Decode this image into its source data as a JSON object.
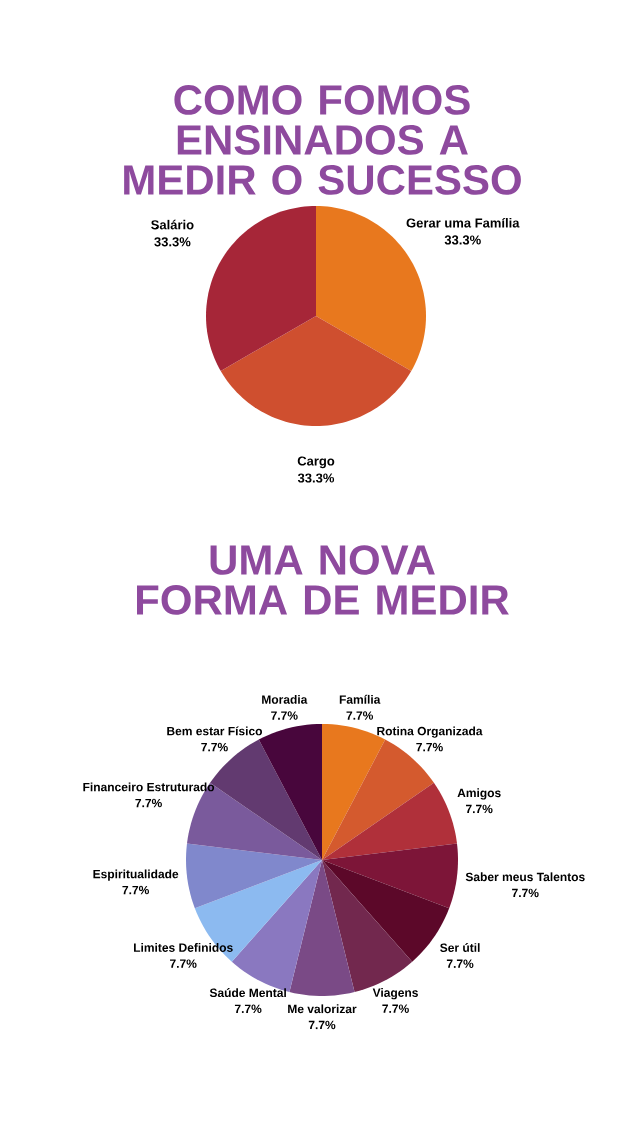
{
  "chart_data": [
    {
      "type": "pie",
      "title": "COMO FOMOS ENSINADOS A MEDIR O SUCESSO",
      "categories": [
        "Gerar uma Família",
        "Cargo",
        "Salário"
      ],
      "values": [
        33.3,
        33.3,
        33.3
      ],
      "value_labels": [
        "33.3%",
        "33.3%",
        "33.3%"
      ],
      "colors": [
        "#e8781e",
        "#cf4f2f",
        "#a62638"
      ]
    },
    {
      "type": "pie",
      "title": "UMA NOVA FORMA DE MEDIR",
      "categories": [
        "Família",
        "Rotina Organizada",
        "Amigos",
        "Saber meus Talentos",
        "Ser útil",
        "Viagens",
        "Me valorizar",
        "Saúde Mental",
        "Limites Definidos",
        "Espiritualidade",
        "Financeiro Estruturado",
        "Bem estar Físico",
        "Moradia"
      ],
      "values": [
        7.7,
        7.7,
        7.7,
        7.7,
        7.7,
        7.7,
        7.7,
        7.7,
        7.7,
        7.7,
        7.7,
        7.7,
        7.7
      ],
      "value_labels": [
        "7.7%",
        "7.7%",
        "7.7%",
        "7.7%",
        "7.7%",
        "7.7%",
        "7.7%",
        "7.7%",
        "7.7%",
        "7.7%",
        "7.7%",
        "7.7%",
        "7.7%"
      ],
      "colors": [
        "#e8781e",
        "#d45a2e",
        "#b0303a",
        "#7d1538",
        "#5c0829",
        "#72284e",
        "#7a4a86",
        "#8a78c0",
        "#8cbaf0",
        "#8088cc",
        "#7a5a9c",
        "#623a70",
        "#48063c"
      ]
    }
  ]
}
